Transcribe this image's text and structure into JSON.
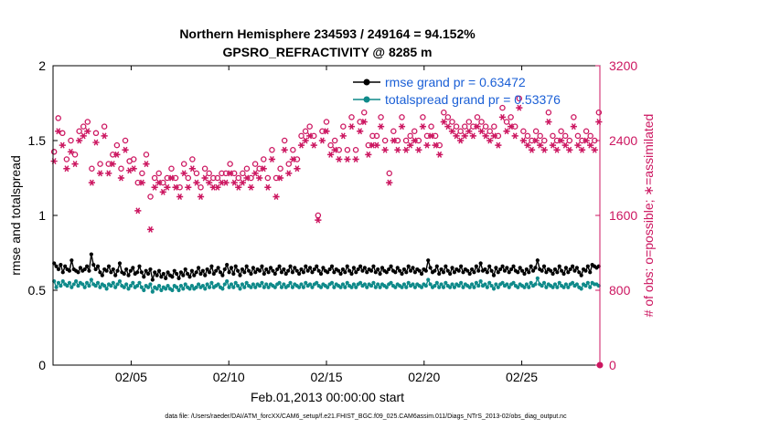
{
  "chart_data": {
    "type": "line",
    "title_line1": "Northern Hemisphere 234593 / 249164 = 94.152%",
    "title_line2": "GPSRO_REFRACTIVITY @ 8285 m",
    "xlabel": "Feb.01,2013 00:00:00 start",
    "ylabel_left": "rmse and totalspread",
    "ylabel_right": "# of obs: o=possible; ∗=assimilated",
    "footnote": "data file: /Users/raeder/DAI/ATM_forcXX/CAM6_setup/f.e21.FHIST_BGC.f09_025.CAM6assim.011/Diags_NTrS_2013-02/obs_diag_output.nc",
    "xlim": [
      1,
      29
    ],
    "ylim_left": [
      0,
      2
    ],
    "ylim_right": [
      0,
      3200
    ],
    "x_tick_values": [
      5,
      10,
      15,
      20,
      25
    ],
    "x_tick_labels": [
      "02/05",
      "02/10",
      "02/15",
      "02/20",
      "02/25"
    ],
    "y_left_ticks": [
      0,
      0.5,
      1,
      1.5,
      2
    ],
    "y_left_tick_labels": [
      "0",
      "0.5",
      "1",
      "1.5",
      "2"
    ],
    "y_right_ticks": [
      0,
      800,
      1600,
      2400,
      3200
    ],
    "y_right_tick_labels": [
      "0",
      "800",
      "1600",
      "2400",
      "3200"
    ],
    "series": [
      {
        "name": "rmse grand pr = 0.63472",
        "axis": "left",
        "color": "#000000",
        "marker": "dot",
        "values": [
          0.68,
          0.66,
          0.64,
          0.67,
          0.62,
          0.66,
          0.64,
          0.63,
          0.7,
          0.64,
          0.63,
          0.62,
          0.65,
          0.63,
          0.64,
          0.66,
          0.63,
          0.74,
          0.67,
          0.64,
          0.66,
          0.62,
          0.6,
          0.64,
          0.63,
          0.66,
          0.62,
          0.64,
          0.6,
          0.63,
          0.68,
          0.62,
          0.61,
          0.64,
          0.6,
          0.63,
          0.65,
          0.61,
          0.62,
          0.66,
          0.62,
          0.59,
          0.63,
          0.61,
          0.64,
          0.57,
          0.62,
          0.6,
          0.63,
          0.59,
          0.61,
          0.58,
          0.62,
          0.6,
          0.59,
          0.63,
          0.61,
          0.58,
          0.62,
          0.6,
          0.64,
          0.61,
          0.59,
          0.63,
          0.6,
          0.62,
          0.65,
          0.61,
          0.63,
          0.6,
          0.64,
          0.62,
          0.66,
          0.61,
          0.63,
          0.65,
          0.62,
          0.6,
          0.64,
          0.67,
          0.62,
          0.65,
          0.61,
          0.66,
          0.63,
          0.6,
          0.64,
          0.62,
          0.66,
          0.63,
          0.61,
          0.65,
          0.62,
          0.64,
          0.63,
          0.66,
          0.61,
          0.64,
          0.62,
          0.65,
          0.63,
          0.61,
          0.64,
          0.66,
          0.62,
          0.64,
          0.61,
          0.63,
          0.66,
          0.62,
          0.65,
          0.63,
          0.61,
          0.64,
          0.62,
          0.66,
          0.63,
          0.65,
          0.62,
          0.64,
          0.66,
          0.63,
          0.61,
          0.65,
          0.63,
          0.62,
          0.64,
          0.66,
          0.62,
          0.64,
          0.63,
          0.61,
          0.64,
          0.62,
          0.66,
          0.63,
          0.61,
          0.65,
          0.62,
          0.64,
          0.66,
          0.63,
          0.65,
          0.62,
          0.64,
          0.63,
          0.66,
          0.62,
          0.64,
          0.61,
          0.65,
          0.63,
          0.62,
          0.64,
          0.66,
          0.63,
          0.62,
          0.65,
          0.63,
          0.61,
          0.64,
          0.62,
          0.66,
          0.63,
          0.65,
          0.62,
          0.64,
          0.63,
          0.61,
          0.64,
          0.63,
          0.7,
          0.65,
          0.62,
          0.63,
          0.66,
          0.61,
          0.64,
          0.62,
          0.66,
          0.63,
          0.61,
          0.65,
          0.62,
          0.64,
          0.63,
          0.66,
          0.62,
          0.64,
          0.63,
          0.61,
          0.64,
          0.62,
          0.66,
          0.63,
          0.68,
          0.63,
          0.64,
          0.62,
          0.66,
          0.63,
          0.6,
          0.65,
          0.62,
          0.64,
          0.66,
          0.63,
          0.65,
          0.62,
          0.64,
          0.66,
          0.63,
          0.62,
          0.65,
          0.63,
          0.61,
          0.64,
          0.62,
          0.66,
          0.63,
          0.65,
          0.7,
          0.64,
          0.63,
          0.66,
          0.62,
          0.64,
          0.63,
          0.61,
          0.64,
          0.62,
          0.66,
          0.63,
          0.61,
          0.65,
          0.62,
          0.64,
          0.66,
          0.63,
          0.65,
          0.62,
          0.6,
          0.64,
          0.63,
          0.66,
          0.62,
          0.67,
          0.66,
          0.65,
          0.66
        ]
      },
      {
        "name": "totalspread grand pr = 0.53376",
        "axis": "left",
        "color": "#0f8a8a",
        "marker": "dot",
        "values": [
          0.56,
          0.52,
          0.55,
          0.53,
          0.56,
          0.54,
          0.53,
          0.55,
          0.52,
          0.54,
          0.56,
          0.53,
          0.55,
          0.54,
          0.52,
          0.55,
          0.53,
          0.57,
          0.54,
          0.53,
          0.55,
          0.52,
          0.54,
          0.53,
          0.51,
          0.54,
          0.53,
          0.55,
          0.52,
          0.54,
          0.56,
          0.53,
          0.52,
          0.54,
          0.51,
          0.53,
          0.55,
          0.52,
          0.53,
          0.55,
          0.52,
          0.5,
          0.53,
          0.52,
          0.54,
          0.49,
          0.52,
          0.51,
          0.53,
          0.5,
          0.52,
          0.51,
          0.53,
          0.51,
          0.5,
          0.53,
          0.52,
          0.5,
          0.53,
          0.51,
          0.54,
          0.52,
          0.51,
          0.53,
          0.51,
          0.52,
          0.54,
          0.52,
          0.53,
          0.51,
          0.54,
          0.52,
          0.55,
          0.52,
          0.53,
          0.54,
          0.52,
          0.51,
          0.54,
          0.56,
          0.52,
          0.54,
          0.52,
          0.55,
          0.53,
          0.51,
          0.54,
          0.52,
          0.55,
          0.53,
          0.52,
          0.54,
          0.52,
          0.54,
          0.53,
          0.55,
          0.52,
          0.54,
          0.52,
          0.54,
          0.53,
          0.52,
          0.54,
          0.55,
          0.52,
          0.54,
          0.52,
          0.53,
          0.55,
          0.52,
          0.54,
          0.53,
          0.52,
          0.54,
          0.52,
          0.55,
          0.53,
          0.54,
          0.52,
          0.54,
          0.55,
          0.53,
          0.52,
          0.54,
          0.53,
          0.52,
          0.54,
          0.55,
          0.52,
          0.54,
          0.53,
          0.52,
          0.54,
          0.52,
          0.55,
          0.53,
          0.52,
          0.54,
          0.52,
          0.54,
          0.55,
          0.53,
          0.54,
          0.52,
          0.54,
          0.53,
          0.55,
          0.52,
          0.54,
          0.52,
          0.54,
          0.53,
          0.52,
          0.54,
          0.55,
          0.53,
          0.52,
          0.54,
          0.53,
          0.52,
          0.54,
          0.52,
          0.55,
          0.53,
          0.54,
          0.52,
          0.54,
          0.53,
          0.52,
          0.54,
          0.53,
          0.57,
          0.54,
          0.52,
          0.53,
          0.55,
          0.52,
          0.54,
          0.52,
          0.55,
          0.53,
          0.52,
          0.54,
          0.52,
          0.54,
          0.53,
          0.55,
          0.52,
          0.54,
          0.53,
          0.52,
          0.54,
          0.52,
          0.55,
          0.53,
          0.56,
          0.53,
          0.54,
          0.52,
          0.55,
          0.53,
          0.51,
          0.54,
          0.52,
          0.54,
          0.55,
          0.53,
          0.54,
          0.52,
          0.54,
          0.55,
          0.53,
          0.52,
          0.54,
          0.53,
          0.52,
          0.54,
          0.52,
          0.55,
          0.53,
          0.54,
          0.58,
          0.54,
          0.53,
          0.55,
          0.52,
          0.54,
          0.53,
          0.52,
          0.54,
          0.52,
          0.55,
          0.53,
          0.52,
          0.54,
          0.52,
          0.54,
          0.55,
          0.53,
          0.54,
          0.52,
          0.51,
          0.54,
          0.53,
          0.55,
          0.52,
          0.55,
          0.54,
          0.54,
          0.53
        ]
      },
      {
        "name": "possible",
        "axis": "right",
        "color": "#cc1660",
        "marker": "circle",
        "values": [
          2280,
          2580,
          2640,
          2750,
          2480,
          2350,
          2200,
          2580,
          2400,
          2300,
          2250,
          2450,
          2500,
          2300,
          2550,
          2480,
          2600,
          2200,
          2100,
          2050,
          2480,
          2300,
          2150,
          2250,
          2550,
          2300,
          2150,
          2400,
          2250,
          2480,
          2350,
          2000,
          2100,
          2250,
          2400,
          2050,
          2180,
          2080,
          2200,
          2150,
          1950,
          2300,
          2050,
          2150,
          2250,
          2100,
          1800,
          1900,
          2000,
          1850,
          2050,
          1800,
          1950,
          1900,
          2000,
          2050,
          2100,
          1950,
          2000,
          2100,
          1900,
          1950,
          2150,
          2050,
          2000,
          1950,
          2200,
          2100,
          2050,
          2000,
          1900,
          2000,
          2100,
          1950,
          2050,
          2100,
          2000,
          2150,
          2000,
          2100,
          2050,
          2200,
          2050,
          2100,
          2150,
          2000,
          2050,
          2100,
          2000,
          2200,
          2050,
          2150,
          2100,
          2050,
          2000,
          2100,
          2150,
          2050,
          2100,
          2000,
          2200,
          2050,
          2000,
          2250,
          2300,
          2100,
          2000,
          2050,
          2100,
          2250,
          2400,
          2200,
          2150,
          2050,
          2300,
          2400,
          2200,
          2100,
          2450,
          2350,
          2500,
          2350,
          2550,
          2400,
          2450,
          2300,
          1600,
          2350,
          2500,
          2400,
          2600,
          2450,
          2350,
          2550,
          2400,
          2500,
          2300,
          2650,
          2550,
          2400,
          2300,
          2500,
          2650,
          2450,
          2300,
          2550,
          2600,
          2450,
          2700,
          2550,
          2350,
          2500,
          2450,
          2600,
          2450,
          2550,
          2650,
          2500,
          2400,
          2350,
          2050,
          2450,
          2500,
          2600,
          2400,
          2550,
          2650,
          2500,
          2400,
          2600,
          2450,
          2550,
          2500,
          2700,
          2400,
          2550,
          2650,
          2500,
          2450,
          2600,
          2550,
          2750,
          2450,
          2500,
          2350,
          2550,
          2700,
          2500,
          2650,
          2450,
          2600,
          2400,
          2550,
          2700,
          2500,
          2650,
          2550,
          2750,
          2600,
          2450,
          2550,
          2400,
          2650,
          2500,
          2600,
          2450,
          2550,
          2350,
          2500,
          2700,
          2550,
          2650,
          2450,
          2600,
          2750,
          2550,
          2600,
          2500,
          2650,
          2800,
          2550,
          2700,
          2850,
          2600,
          2500,
          2650,
          2450,
          2550,
          2400,
          2600,
          2500,
          2300,
          2450,
          2550,
          2400,
          2600,
          2700,
          2500,
          2450,
          2550,
          2400,
          2600,
          2500,
          2300,
          2450,
          2550,
          2400,
          2600,
          2650,
          2700,
          2450,
          2550,
          2400,
          2600,
          2500,
          2300,
          2450,
          2550,
          2400,
          2600,
          2700
        ]
      },
      {
        "name": "assimilated",
        "axis": "right",
        "color": "#cc1660",
        "marker": "star",
        "values": [
          2180,
          2450,
          2500,
          2580,
          2350,
          2250,
          2100,
          2450,
          2280,
          2200,
          2150,
          2350,
          2400,
          2200,
          2450,
          2380,
          2500,
          2100,
          1950,
          1850,
          2380,
          2200,
          2050,
          2150,
          2450,
          2200,
          2050,
          2300,
          2150,
          2380,
          2250,
          1900,
          2000,
          2150,
          2300,
          1950,
          2080,
          1980,
          2100,
          2050,
          1650,
          2200,
          1950,
          2050,
          2150,
          2000,
          1450,
          1850,
          1900,
          1700,
          1950,
          1750,
          1850,
          1800,
          1900,
          1950,
          2000,
          1850,
          1900,
          2000,
          1800,
          1850,
          2050,
          1950,
          1900,
          1850,
          2100,
          2000,
          1950,
          1900,
          1800,
          1900,
          2000,
          1850,
          1950,
          2000,
          1900,
          2050,
          1900,
          2000,
          1950,
          2100,
          1950,
          2000,
          2050,
          1900,
          1950,
          2000,
          1900,
          2100,
          1950,
          2050,
          2000,
          1950,
          1900,
          2000,
          2050,
          1950,
          2000,
          1900,
          2100,
          1950,
          1900,
          2150,
          2200,
          2000,
          1800,
          1950,
          2000,
          2150,
          2300,
          2100,
          2050,
          1950,
          2200,
          2300,
          2100,
          2000,
          2350,
          2250,
          2400,
          2250,
          2450,
          2300,
          2350,
          2200,
          1550,
          2250,
          2400,
          2300,
          2500,
          2350,
          2250,
          2450,
          2300,
          2400,
          2200,
          2550,
          2450,
          2300,
          2200,
          2400,
          2550,
          2350,
          2200,
          2450,
          2500,
          2350,
          2600,
          2450,
          2250,
          2400,
          2350,
          2500,
          2350,
          2450,
          2550,
          2400,
          2300,
          2250,
          1950,
          2350,
          2400,
          2500,
          2300,
          2450,
          2550,
          2400,
          2300,
          2500,
          2350,
          2450,
          2400,
          2600,
          2300,
          2450,
          2550,
          2400,
          2350,
          2500,
          2450,
          2650,
          2350,
          2400,
          2250,
          2450,
          2600,
          2400,
          2550,
          2350,
          2500,
          2300,
          2450,
          2600,
          2400,
          2550,
          2450,
          2650,
          2500,
          2350,
          2450,
          2300,
          2550,
          2400,
          2500,
          2350,
          2450,
          2250,
          2400,
          2600,
          2450,
          2550,
          2350,
          2500,
          2650,
          2450,
          2500,
          2400,
          2550,
          2700,
          2450,
          2600,
          2750,
          2500,
          2400,
          2550,
          2350,
          2450,
          2300,
          2500,
          2400,
          2200,
          2350,
          2450,
          2300,
          2500,
          2600,
          2400,
          2350,
          2450,
          2300,
          2500,
          2400,
          2200,
          2350,
          2450,
          2300,
          2500,
          2550,
          2600,
          2350,
          2450,
          2300,
          2500,
          2400,
          2200,
          2350,
          2450,
          2300,
          2500,
          2600
        ]
      }
    ],
    "legend": [
      {
        "label": "rmse grand pr = 0.63472",
        "color": "#000000"
      },
      {
        "label": "totalspread grand pr = 0.53376",
        "color": "#0f8a8a"
      }
    ],
    "legend_position": "top-right",
    "right_axis_color": "#cc1660"
  }
}
